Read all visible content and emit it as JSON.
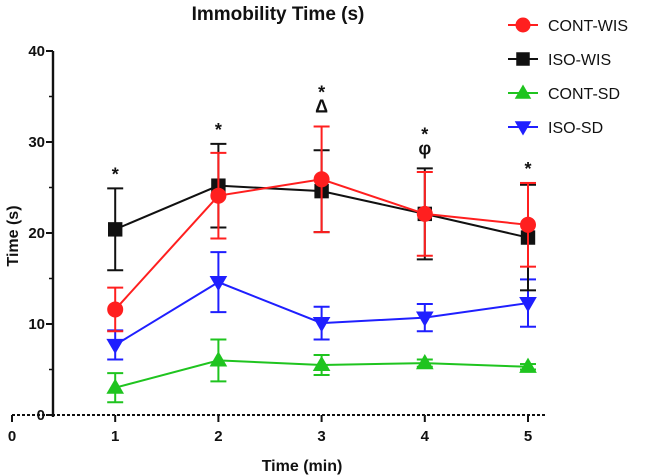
{
  "chart_data": {
    "type": "line",
    "title": "Immobility Time (s)",
    "xlabel": "Time (min)",
    "ylabel": "Time (s)",
    "xlim": [
      0,
      5
    ],
    "ylim": [
      0,
      40
    ],
    "x_ticks": [
      "0",
      "1",
      "2",
      "3",
      "4",
      "5"
    ],
    "y_ticks": [
      "0",
      "10",
      "20",
      "30",
      "40"
    ],
    "x": [
      1,
      2,
      3,
      4,
      5
    ],
    "grid": false,
    "legend_position": "top-right",
    "series": [
      {
        "name": "CONT-WIS",
        "color": "#ff1f1f",
        "marker": "circle",
        "values": [
          11.6,
          24.1,
          25.9,
          22.1,
          20.9
        ],
        "errors": [
          2.4,
          4.7,
          5.8,
          4.6,
          4.6
        ]
      },
      {
        "name": "ISO-WIS",
        "color": "#111111",
        "marker": "square",
        "values": [
          20.4,
          25.2,
          24.6,
          22.1,
          19.5
        ],
        "errors": [
          4.5,
          4.6,
          4.5,
          5.0,
          5.8
        ]
      },
      {
        "name": "CONT-SD",
        "color": "#1fc41f",
        "marker": "triangle-up",
        "values": [
          3.0,
          6.0,
          5.5,
          5.7,
          5.3
        ],
        "errors": [
          1.6,
          2.3,
          1.1,
          0.4,
          0.3
        ]
      },
      {
        "name": "ISO-SD",
        "color": "#1f1fff",
        "marker": "triangle-down",
        "values": [
          7.7,
          14.6,
          10.1,
          10.7,
          12.3
        ],
        "errors": [
          1.6,
          3.3,
          1.8,
          1.5,
          2.6
        ]
      }
    ],
    "annotations": [
      {
        "x": 1,
        "lines": [
          "*"
        ]
      },
      {
        "x": 2,
        "lines": [
          "*"
        ]
      },
      {
        "x": 3,
        "lines": [
          "*",
          "Δ"
        ]
      },
      {
        "x": 4,
        "lines": [
          "*",
          "φ"
        ]
      },
      {
        "x": 5,
        "lines": [
          "*"
        ]
      }
    ]
  }
}
